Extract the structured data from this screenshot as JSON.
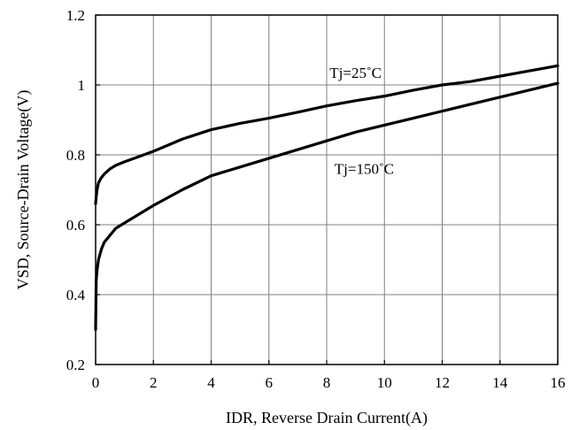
{
  "chart_data": {
    "type": "line",
    "title": "",
    "xlabel": "IDR, Reverse Drain Current(A)",
    "ylabel": "VSD, Source-Drain Voltage(V)",
    "xlim": [
      0,
      16
    ],
    "ylim": [
      0.2,
      1.2
    ],
    "x_ticks": [
      "0",
      "2",
      "4",
      "6",
      "8",
      "10",
      "12",
      "14",
      "16"
    ],
    "y_ticks": [
      "0.2",
      "0.4",
      "0.6",
      "0.8",
      "1",
      "1.2"
    ],
    "grid": true,
    "series": [
      {
        "name": "Tj=25˚C",
        "x": [
          0,
          0.02,
          0.05,
          0.1,
          0.2,
          0.3,
          0.5,
          0.7,
          1,
          1.5,
          2,
          3,
          4,
          5,
          6,
          7,
          8,
          9,
          10,
          11,
          12,
          13,
          14,
          15,
          16
        ],
        "y": [
          0.66,
          0.68,
          0.7,
          0.72,
          0.735,
          0.745,
          0.76,
          0.77,
          0.78,
          0.795,
          0.81,
          0.845,
          0.872,
          0.89,
          0.905,
          0.922,
          0.94,
          0.955,
          0.968,
          0.985,
          1.0,
          1.01,
          1.025,
          1.04,
          1.055
        ]
      },
      {
        "name": "Tj=150˚C",
        "x": [
          0,
          0.02,
          0.05,
          0.1,
          0.2,
          0.3,
          0.5,
          0.7,
          1,
          1.5,
          2,
          3,
          4,
          5,
          6,
          7,
          8,
          9,
          10,
          11,
          12,
          13,
          14,
          15,
          16
        ],
        "y": [
          0.3,
          0.44,
          0.47,
          0.5,
          0.53,
          0.55,
          0.57,
          0.59,
          0.605,
          0.63,
          0.655,
          0.7,
          0.74,
          0.765,
          0.79,
          0.815,
          0.84,
          0.865,
          0.885,
          0.905,
          0.925,
          0.945,
          0.965,
          0.985,
          1.005
        ]
      }
    ],
    "annotations": [
      {
        "text": "Tj=25˚C",
        "x": 9,
        "y": 1.02
      },
      {
        "text": "Tj=150˚C",
        "x": 9.3,
        "y": 0.745
      }
    ],
    "line_color": "#000000",
    "grid_color": "#808080"
  }
}
